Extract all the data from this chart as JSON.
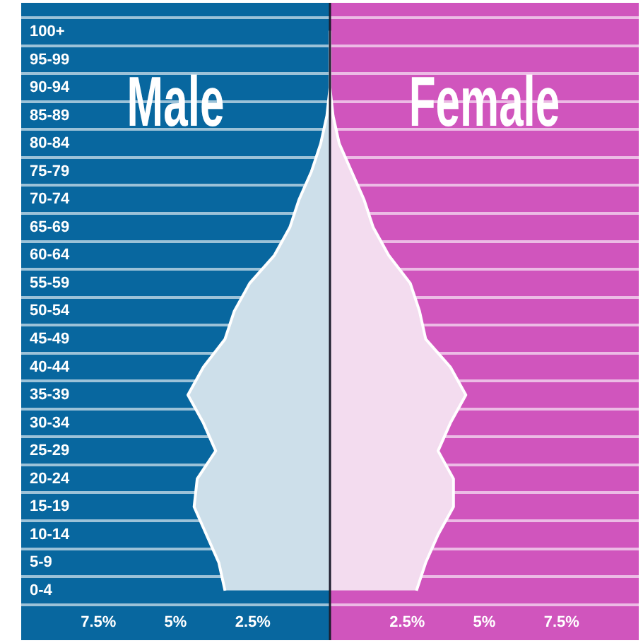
{
  "chart_data": {
    "type": "area",
    "orientation": "horizontal",
    "categories": [
      "100+",
      "95-99",
      "90-94",
      "85-89",
      "80-84",
      "75-79",
      "70-74",
      "65-69",
      "60-64",
      "55-59",
      "50-54",
      "45-49",
      "40-44",
      "35-39",
      "30-34",
      "25-29",
      "20-24",
      "15-19",
      "10-14",
      "5-9",
      "0-4"
    ],
    "series": [
      {
        "name": "Male",
        "color": "#cddfea",
        "values": [
          0,
          0,
          0,
          -0.1,
          -0.3,
          -0.6,
          -1.0,
          -1.3,
          -1.8,
          -2.6,
          -3.1,
          -3.4,
          -4.1,
          -4.6,
          -4.1,
          -3.7,
          -4.3,
          -4.4,
          -4.0,
          -3.6,
          -3.4
        ]
      },
      {
        "name": "Female",
        "color": "#f3dcef",
        "values": [
          0,
          0,
          0,
          0.1,
          0.3,
          0.7,
          1.1,
          1.4,
          1.9,
          2.6,
          2.9,
          3.1,
          3.9,
          4.4,
          3.9,
          3.5,
          4.0,
          4.0,
          3.5,
          3.1,
          2.8
        ]
      }
    ],
    "xlim": [
      -10,
      10
    ],
    "xticks": [
      {
        "value": -7.5,
        "label": "7.5%"
      },
      {
        "value": -5,
        "label": "5%"
      },
      {
        "value": -2.5,
        "label": "2.5%"
      },
      {
        "value": 2.5,
        "label": "2.5%"
      },
      {
        "value": 5,
        "label": "5%"
      },
      {
        "value": 7.5,
        "label": "7.5%"
      }
    ],
    "bands": [
      {
        "axis": "x",
        "from": -10,
        "to": 0,
        "color": "#08679f"
      },
      {
        "axis": "x",
        "from": 0,
        "to": 10,
        "color": "#d055bd"
      }
    ],
    "ref_lines": [
      {
        "axis": "x",
        "value": 0,
        "color": "#1c1c2c"
      }
    ],
    "grid": "y"
  }
}
